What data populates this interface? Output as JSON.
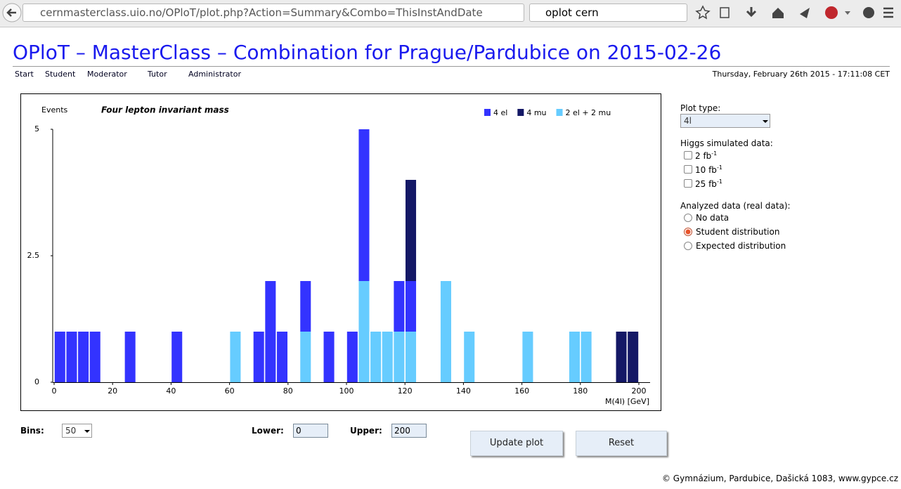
{
  "browser": {
    "url": "cernmasterclass.uio.no/OPloT/plot.php?Action=Summary&Combo=ThisInstAndDate",
    "search": "oplot cern"
  },
  "header": {
    "title": "OPloT – MasterClass – Combination for Prague/Pardubice on 2015-02-26",
    "nav": [
      "Start",
      "Student",
      "Moderator",
      "Tutor",
      "Administrator"
    ],
    "date": "Thursday, February 26th 2015 - 17:11:08 CET"
  },
  "chart_data": {
    "type": "histogram",
    "title": "Four lepton invariant mass",
    "ylabel": "Events",
    "xlabel": "M(4l) [GeV]",
    "bins": [
      0,
      4,
      8,
      12,
      16,
      20,
      24,
      28,
      32,
      36,
      40,
      44,
      48,
      52,
      56,
      60,
      64,
      68,
      72,
      76,
      80,
      84,
      88,
      92,
      96,
      100,
      104,
      108,
      112,
      116,
      120,
      124,
      128,
      132,
      136,
      140,
      144,
      148,
      152,
      156,
      160,
      164,
      168,
      172,
      176,
      180,
      184,
      188,
      192,
      196,
      200
    ],
    "series": [
      {
        "name": "2 el + 2 mu",
        "color": "#66ccff",
        "values": [
          0,
          0,
          0,
          0,
          0,
          0,
          0,
          0,
          0,
          0,
          0,
          0,
          0,
          0,
          0,
          1,
          0,
          0,
          0,
          0,
          0,
          1,
          0,
          0,
          0,
          0,
          2,
          1,
          1,
          1,
          1,
          0,
          0,
          2,
          0,
          1,
          0,
          0,
          0,
          0,
          1,
          0,
          0,
          0,
          1,
          1,
          0,
          0,
          0,
          0
        ]
      },
      {
        "name": "4 el",
        "color": "#3333ff",
        "values": [
          1,
          1,
          1,
          1,
          0,
          0,
          1,
          0,
          0,
          0,
          1,
          0,
          0,
          0,
          0,
          0,
          0,
          1,
          2,
          1,
          0,
          1,
          0,
          1,
          0,
          1,
          3,
          0,
          0,
          1,
          1,
          0,
          0,
          0,
          0,
          0,
          0,
          0,
          0,
          0,
          0,
          0,
          0,
          0,
          0,
          0,
          0,
          0,
          0,
          0
        ]
      },
      {
        "name": "4 mu",
        "color": "#141866",
        "values": [
          0,
          0,
          0,
          0,
          0,
          0,
          0,
          0,
          0,
          0,
          0,
          0,
          0,
          0,
          0,
          0,
          0,
          0,
          0,
          0,
          0,
          0,
          0,
          0,
          0,
          0,
          0,
          0,
          0,
          0,
          2,
          0,
          0,
          0,
          0,
          0,
          0,
          0,
          0,
          0,
          0,
          0,
          0,
          0,
          0,
          0,
          0,
          0,
          1,
          1
        ]
      }
    ],
    "legend_order": [
      1,
      2,
      0
    ],
    "xlim": [
      0,
      200
    ],
    "xticks": [
      0,
      20,
      40,
      60,
      80,
      100,
      120,
      140,
      160,
      180,
      200
    ],
    "ylim": [
      0,
      5
    ],
    "yticks": [
      0,
      2.5,
      5
    ],
    "grid": false
  },
  "sidebar": {
    "plot_type_label": "Plot type:",
    "plot_type": "4l",
    "higgs_label": "Higgs simulated data:",
    "higgs_options": [
      {
        "text": "2 fb",
        "sup": "-1"
      },
      {
        "text": "10 fb",
        "sup": "-1"
      },
      {
        "text": "25 fb",
        "sup": "-1"
      }
    ],
    "analyzed_label": "Analyzed data (real data):",
    "analyzed_options": [
      "No data",
      "Student distribution",
      "Expected distribution"
    ],
    "analyzed_selected": 1
  },
  "controls": {
    "bins_label": "Bins:",
    "bins": "50",
    "lower_label": "Lower:",
    "lower": "0",
    "upper_label": "Upper:",
    "upper": "200",
    "update": "Update plot",
    "reset": "Reset"
  },
  "footer": "© Gymnázium, Pardubice, Dašická 1083, www.gypce.cz"
}
